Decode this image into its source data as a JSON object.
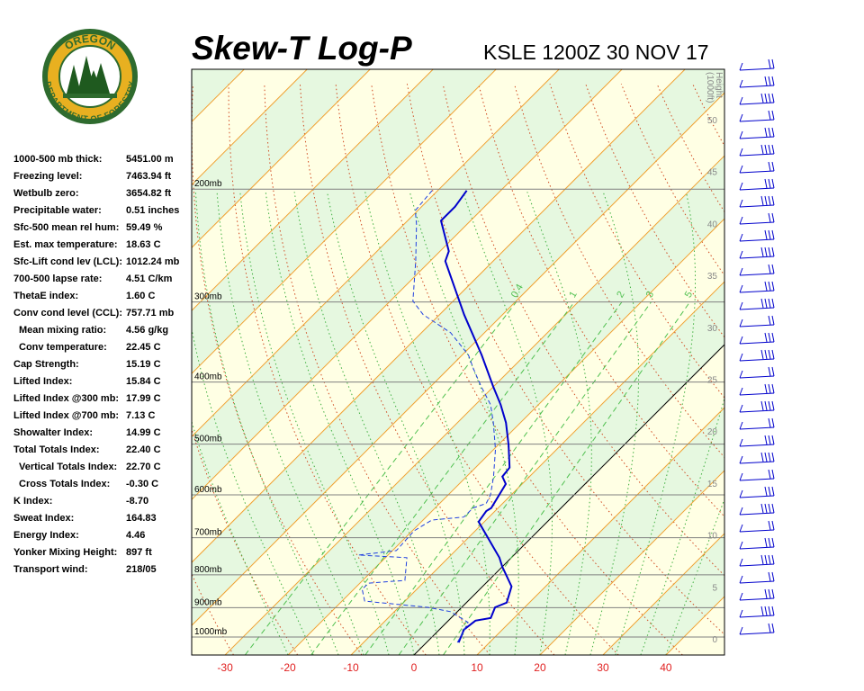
{
  "header": {
    "title": "Skew-T Log-P",
    "station": "KSLE 1200Z 30 NOV 17"
  },
  "logo": {
    "top": "OREGON",
    "bottom": "DEPARTMENT OF FORESTRY"
  },
  "stats": [
    [
      "1000-500 mb thick:",
      "5451.00 m"
    ],
    [
      "Freezing level:",
      "7463.94 ft"
    ],
    [
      "Wetbulb zero:",
      "3654.82 ft"
    ],
    [
      "Precipitable water:",
      "0.51 inches"
    ],
    [
      "Sfc-500 mean rel hum:",
      "59.49 %"
    ],
    [
      "Est. max temperature:",
      "18.63 C"
    ],
    [
      "Sfc-Lift cond lev (LCL):",
      "1012.24 mb"
    ],
    [
      "700-500 lapse rate:",
      "4.51 C/km"
    ],
    [
      "ThetaE index:",
      "1.60 C"
    ],
    [
      "Conv cond level (CCL):",
      "757.71 mb"
    ],
    [
      "Mean mixing ratio:",
      "4.56 g/kg"
    ],
    [
      "Conv temperature:",
      "22.45 C"
    ],
    [
      "Cap Strength:",
      "15.19 C"
    ],
    [
      "Lifted Index:",
      "15.84 C"
    ],
    [
      "Lifted Index @300 mb:",
      "17.99 C"
    ],
    [
      "Lifted Index @700 mb:",
      "7.13 C"
    ],
    [
      "Showalter Index:",
      "14.99 C"
    ],
    [
      "Total Totals Index:",
      "22.40 C"
    ],
    [
      "Vertical Totals Index:",
      "22.70 C"
    ],
    [
      "Cross Totals Index:",
      "-0.30 C"
    ],
    [
      "K Index:",
      "-8.70"
    ],
    [
      "Sweat Index:",
      "164.83"
    ],
    [
      "Energy Index:",
      "4.46"
    ],
    [
      "Yonker Mixing Height:",
      "897 ft"
    ],
    [
      "Transport wind:",
      "218/05"
    ]
  ],
  "chart_data": {
    "type": "skewt",
    "xlim": [
      -35.3,
      49.3
    ],
    "xticks": [
      -30,
      -20,
      -10,
      0,
      10,
      20,
      30,
      40
    ],
    "ylim": [
      1067,
      130
    ],
    "log_y": true,
    "yticks": [
      {
        "value": 200,
        "label": "200mb"
      },
      {
        "value": 300,
        "label": "300mb"
      },
      {
        "value": 400,
        "label": "400mb"
      },
      {
        "value": 500,
        "label": "500mb"
      },
      {
        "value": 600,
        "label": "600mb"
      },
      {
        "value": 700,
        "label": "700mb"
      },
      {
        "value": 800,
        "label": "800mb"
      },
      {
        "value": 900,
        "label": "900mb"
      },
      {
        "value": 1000,
        "label": "1000mb"
      }
    ],
    "height_axis_label": [
      "Height",
      "(1000ft)"
    ],
    "height_lim": [
      0,
      50
    ],
    "height_ticks": [
      0,
      5,
      10,
      15,
      20,
      25,
      30,
      35,
      40,
      45,
      50
    ],
    "mixing_ratio_labels": [
      0.4,
      1,
      2,
      3,
      5
    ],
    "series": [
      {
        "color": "#0000cc",
        "style": "solid",
        "pressure": [
          1020,
          974,
          943,
          934,
          899,
          884,
          834,
          777,
          752,
          661,
          636,
          629,
          577,
          562,
          544,
          502,
          463,
          434,
          407,
          363,
          314,
          259,
          250,
          224,
          213,
          201
        ],
        "values": [
          5.1,
          3.9,
          4.3,
          6.3,
          5.3,
          6.4,
          4.6,
          0,
          -1.9,
          -10.9,
          -11.4,
          -11.1,
          -12.6,
          -14.3,
          -14.6,
          -18.3,
          -22.3,
          -26,
          -30,
          -36.9,
          -46.1,
          -57.6,
          -58.6,
          -64.7,
          -64.7,
          -65.4
        ]
      },
      {
        "color": "#2040e0",
        "style": "dashed",
        "pressure": [
          1020,
          949,
          913,
          899,
          879,
          842,
          824,
          816,
          752,
          745,
          733,
          683,
          657,
          650,
          629,
          619,
          600,
          562,
          510,
          463,
          434,
          407,
          381,
          363,
          335,
          314,
          299,
          259,
          227,
          216,
          201
        ],
        "values": [
          4.9,
          3.4,
          -1.1,
          -5.4,
          -16.4,
          -18.7,
          -18.6,
          -13.3,
          -16.6,
          -24.7,
          -19.4,
          -19.7,
          -18.6,
          -14,
          -14,
          -12.6,
          -13.3,
          -15.7,
          -19.7,
          -24.3,
          -27.6,
          -31.9,
          -36.1,
          -39,
          -45.4,
          -52.6,
          -56.4,
          -62.3,
          -68,
          -70.4,
          -70.9
        ]
      }
    ]
  }
}
